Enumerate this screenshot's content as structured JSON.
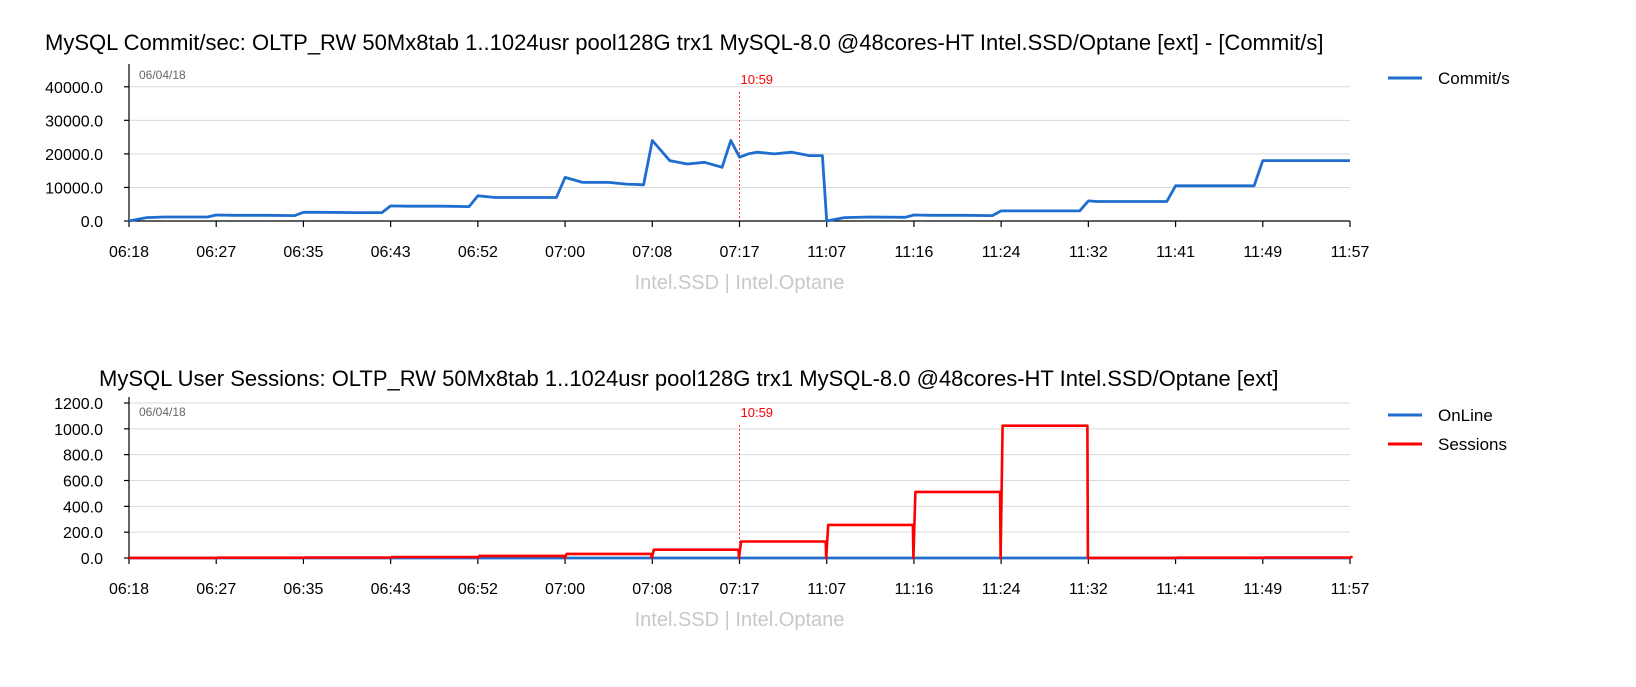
{
  "chart_data": [
    {
      "type": "line",
      "title": "MySQL Commit/sec: OLTP_RW 50Mx8tab 1..1024usr pool128G trx1 MySQL-8.0 @48cores-HT Intel.SSD/Optane [ext] - [Commit/s]",
      "xlabel": "Intel.SSD | Intel.Optane",
      "ylabel": "",
      "date_label": "06/04/18",
      "marker_label": "10:59",
      "x_ticks": [
        "06:18",
        "06:27",
        "06:35",
        "06:43",
        "06:52",
        "07:00",
        "07:08",
        "07:17",
        "11:07",
        "11:16",
        "11:24",
        "11:32",
        "11:41",
        "11:49",
        "11:57"
      ],
      "y_ticks": [
        "0.0",
        "10000.0",
        "20000.0",
        "30000.0",
        "40000.0"
      ],
      "ylim": [
        0,
        45000
      ],
      "legend_position": "top-right",
      "colors": {
        "Commit/s": "#1f6ecf"
      },
      "series": [
        {
          "name": "Commit/s",
          "x": [
            0,
            0.2,
            0.4,
            0.6,
            0.9,
            1.0,
            1.2,
            1.6,
            1.9,
            2.0,
            2.2,
            2.6,
            2.9,
            3.0,
            3.2,
            3.6,
            3.9,
            4.0,
            4.2,
            4.6,
            4.9,
            5.0,
            5.2,
            5.5,
            5.7,
            5.9,
            6.0,
            6.2,
            6.4,
            6.6,
            6.8,
            6.9,
            7.0,
            7.1,
            7.2,
            7.4,
            7.6,
            7.8,
            7.95,
            8.0,
            8.2,
            8.5,
            8.9,
            9.0,
            9.2,
            9.6,
            9.9,
            10.0,
            10.2,
            10.6,
            10.9,
            11.0,
            11.1,
            11.3,
            11.5,
            11.7,
            11.9,
            12.0,
            12.2,
            12.6,
            12.9,
            13.0,
            13.1,
            13.3,
            13.6,
            13.9,
            14.0
          ],
          "values": [
            0,
            1000,
            1200,
            1200,
            1200,
            1800,
            1700,
            1700,
            1600,
            2600,
            2600,
            2500,
            2500,
            4500,
            4400,
            4400,
            4300,
            7500,
            7000,
            7000,
            7000,
            13000,
            11500,
            11500,
            11000,
            10800,
            24000,
            18000,
            17000,
            17500,
            16000,
            24000,
            19000,
            20000,
            20500,
            20000,
            20500,
            19500,
            19500,
            0,
            1000,
            1200,
            1100,
            1800,
            1700,
            1700,
            1600,
            3000,
            3000,
            3000,
            3000,
            6000,
            5800,
            5800,
            5800,
            5800,
            5800,
            10500,
            10500,
            10500,
            10500,
            18000,
            18000,
            18000,
            18000,
            18000,
            18000
          ]
        }
      ]
    },
    {
      "type": "line",
      "title": "MySQL User Sessions: OLTP_RW 50Mx8tab 1..1024usr pool128G trx1 MySQL-8.0 @48cores-HT Intel.SSD/Optane [ext]",
      "xlabel": "Intel.SSD | Intel.Optane",
      "ylabel": "",
      "date_label": "06/04/18",
      "marker_label": "10:59",
      "x_ticks": [
        "06:18",
        "06:27",
        "06:35",
        "06:43",
        "06:52",
        "07:00",
        "07:08",
        "07:17",
        "11:07",
        "11:16",
        "11:24",
        "11:32",
        "11:41",
        "11:49",
        "11:57"
      ],
      "y_ticks": [
        "0.0",
        "200.0",
        "400.0",
        "600.0",
        "800.0",
        "1000.0",
        "1200.0"
      ],
      "ylim": [
        0,
        1200
      ],
      "legend_position": "top-right",
      "colors": {
        "OnLine": "#1f6ecf",
        "Sessions": "#ff0000"
      },
      "series": [
        {
          "name": "OnLine",
          "x": [
            0,
            14
          ],
          "values": [
            0,
            0
          ]
        },
        {
          "name": "Sessions",
          "x": [
            0,
            1,
            2,
            3,
            4,
            5,
            6,
            7,
            8,
            9,
            10,
            11,
            12,
            13,
            14
          ],
          "values": [
            1,
            2,
            4,
            8,
            16,
            32,
            64,
            128,
            256,
            512,
            1024,
            1,
            2,
            4,
            8
          ]
        }
      ]
    }
  ]
}
